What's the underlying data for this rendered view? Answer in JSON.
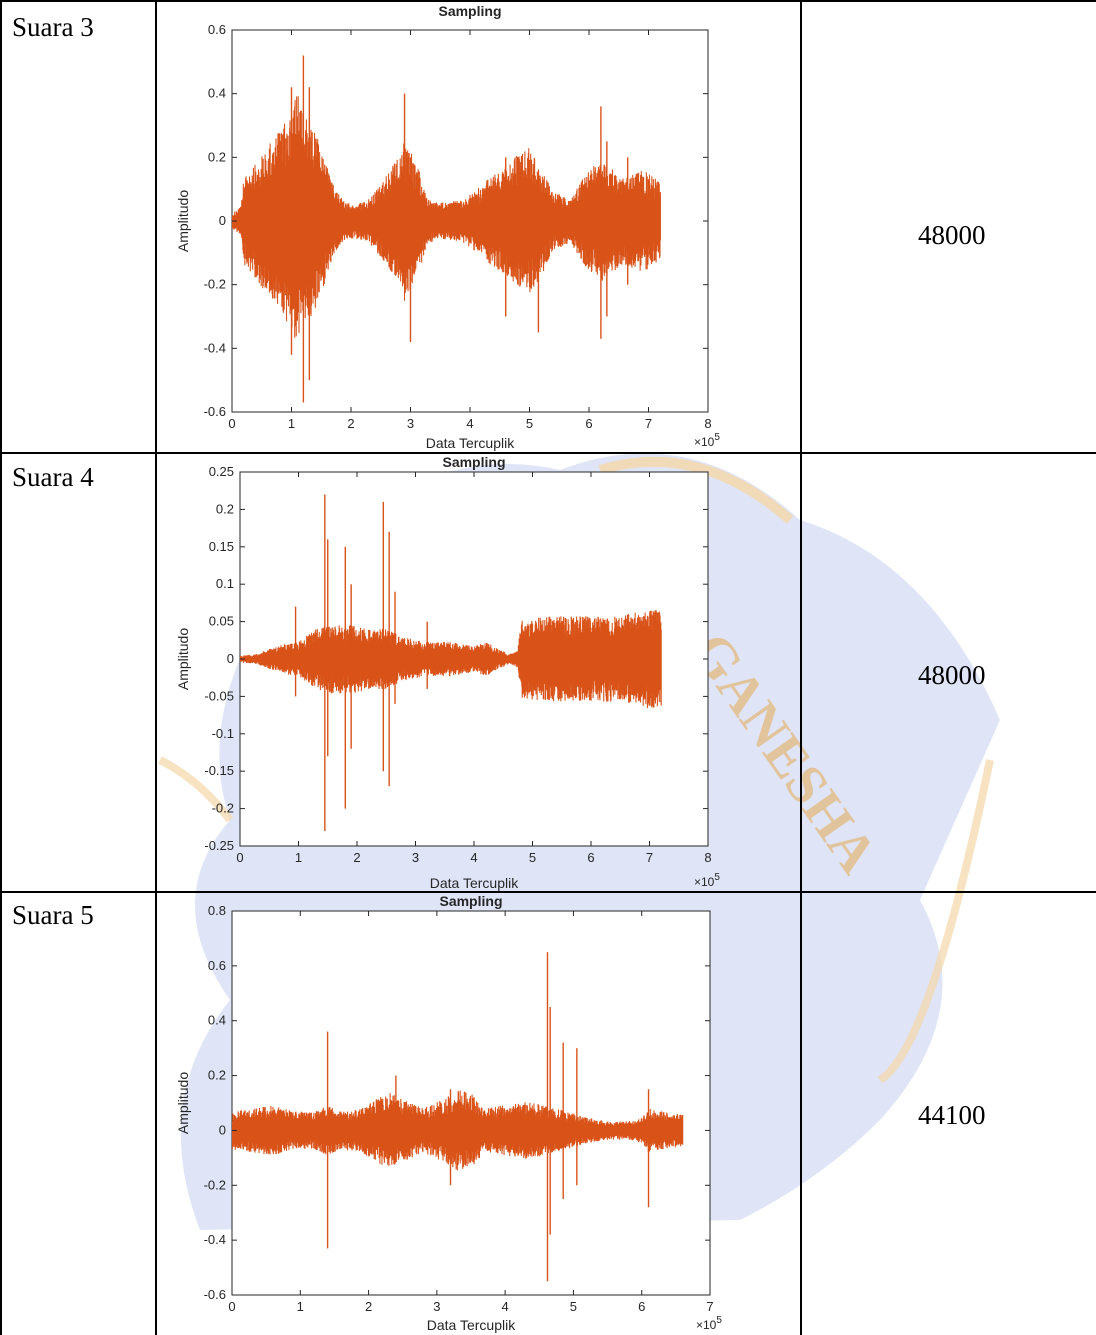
{
  "rows": [
    {
      "label": "Suara 3",
      "rate": "48000",
      "chart": {
        "type": "line",
        "title": "Sampling",
        "xlabel": "Data Tercuplik",
        "ylabel": "Amplitudo",
        "xlim": [
          0,
          8
        ],
        "ylim": [
          -0.6,
          0.6
        ],
        "x_exponent": "×10",
        "x_exponent_power": "5",
        "xticks": [
          0,
          1,
          2,
          3,
          4,
          5,
          6,
          7,
          8
        ],
        "yticks": [
          -0.6,
          -0.4,
          -0.2,
          0,
          0.2,
          0.4,
          0.6
        ],
        "xtick_labels": [
          "0",
          "1",
          "2",
          "3",
          "4",
          "5",
          "6",
          "7",
          "8"
        ],
        "ytick_labels": [
          "-0.6",
          "-0.4",
          "-0.2",
          "0",
          "0.2",
          "0.4",
          "0.6"
        ],
        "signal_end": 7.2,
        "color": "#D95319",
        "envelope": [
          [
            0,
            0.02
          ],
          [
            0.15,
            0.04
          ],
          [
            0.2,
            0.12
          ],
          [
            0.5,
            0.18
          ],
          [
            0.8,
            0.25
          ],
          [
            1.0,
            0.3
          ],
          [
            1.1,
            0.35
          ],
          [
            1.2,
            0.3
          ],
          [
            1.3,
            0.28
          ],
          [
            1.5,
            0.2
          ],
          [
            1.7,
            0.1
          ],
          [
            1.9,
            0.05
          ],
          [
            2.1,
            0.05
          ],
          [
            2.3,
            0.06
          ],
          [
            2.5,
            0.1
          ],
          [
            2.7,
            0.15
          ],
          [
            2.9,
            0.22
          ],
          [
            3.1,
            0.16
          ],
          [
            3.3,
            0.06
          ],
          [
            3.6,
            0.05
          ],
          [
            3.9,
            0.06
          ],
          [
            4.2,
            0.1
          ],
          [
            4.5,
            0.14
          ],
          [
            4.8,
            0.18
          ],
          [
            5.0,
            0.2
          ],
          [
            5.2,
            0.15
          ],
          [
            5.4,
            0.08
          ],
          [
            5.7,
            0.06
          ],
          [
            5.9,
            0.12
          ],
          [
            6.2,
            0.17
          ],
          [
            6.4,
            0.14
          ],
          [
            6.6,
            0.12
          ],
          [
            6.9,
            0.14
          ],
          [
            7.1,
            0.12
          ],
          [
            7.2,
            0.1
          ]
        ],
        "spikes": [
          [
            1.0,
            0.42,
            -0.42
          ],
          [
            1.2,
            0.52,
            -0.57
          ],
          [
            1.3,
            0.42,
            -0.5
          ],
          [
            2.9,
            0.4,
            -0.2
          ],
          [
            3.0,
            0.2,
            -0.38
          ],
          [
            4.6,
            0.2,
            -0.3
          ],
          [
            5.15,
            0.15,
            -0.35
          ],
          [
            6.2,
            0.36,
            -0.37
          ],
          [
            6.3,
            0.25,
            -0.3
          ],
          [
            6.65,
            0.2,
            -0.2
          ]
        ]
      }
    },
    {
      "label": "Suara 4",
      "rate": "48000",
      "chart": {
        "type": "line",
        "title": "Sampling",
        "xlabel": "Data Tercuplik",
        "ylabel": "Amplitudo",
        "xlim": [
          0,
          8
        ],
        "ylim": [
          -0.25,
          0.25
        ],
        "x_exponent": "×10",
        "x_exponent_power": "5",
        "xticks": [
          0,
          1,
          2,
          3,
          4,
          5,
          6,
          7,
          8
        ],
        "yticks": [
          -0.25,
          -0.2,
          -0.15,
          -0.1,
          -0.05,
          0,
          0.05,
          0.1,
          0.15,
          0.2,
          0.25
        ],
        "xtick_labels": [
          "0",
          "1",
          "2",
          "3",
          "4",
          "5",
          "6",
          "7",
          "8"
        ],
        "ytick_labels": [
          "-0.25",
          "-0.2",
          "-0.15",
          "-0.1",
          "-0.05",
          "0",
          "0.05",
          "0.1",
          "0.15",
          "0.2",
          "0.25"
        ],
        "signal_end": 7.2,
        "color": "#D95319",
        "envelope": [
          [
            0,
            0.004
          ],
          [
            0.3,
            0.006
          ],
          [
            0.5,
            0.012
          ],
          [
            0.8,
            0.018
          ],
          [
            1.0,
            0.02
          ],
          [
            1.3,
            0.035
          ],
          [
            1.5,
            0.04
          ],
          [
            1.7,
            0.04
          ],
          [
            2.0,
            0.04
          ],
          [
            2.2,
            0.035
          ],
          [
            2.5,
            0.035
          ],
          [
            2.8,
            0.025
          ],
          [
            3.2,
            0.02
          ],
          [
            3.6,
            0.02
          ],
          [
            4.0,
            0.015
          ],
          [
            4.2,
            0.02
          ],
          [
            4.4,
            0.012
          ],
          [
            4.6,
            0.006
          ],
          [
            4.75,
            0.01
          ],
          [
            4.8,
            0.045
          ],
          [
            5.2,
            0.05
          ],
          [
            5.6,
            0.05
          ],
          [
            6.0,
            0.05
          ],
          [
            6.4,
            0.05
          ],
          [
            6.8,
            0.055
          ],
          [
            7.0,
            0.06
          ],
          [
            7.2,
            0.055
          ]
        ],
        "spikes": [
          [
            0.95,
            0.07,
            -0.05
          ],
          [
            1.45,
            0.22,
            -0.23
          ],
          [
            1.5,
            0.16,
            -0.13
          ],
          [
            1.8,
            0.15,
            -0.2
          ],
          [
            1.9,
            0.1,
            -0.12
          ],
          [
            2.45,
            0.21,
            -0.15
          ],
          [
            2.55,
            0.17,
            -0.17
          ],
          [
            2.65,
            0.09,
            -0.06
          ],
          [
            3.2,
            0.05,
            -0.04
          ]
        ]
      }
    },
    {
      "label": "Suara 5",
      "rate": "44100",
      "chart": {
        "type": "line",
        "title": "Sampling",
        "xlabel": "Data Tercuplik",
        "ylabel": "Amplitudo",
        "xlim": [
          0,
          7
        ],
        "ylim": [
          -0.6,
          0.8
        ],
        "x_exponent": "×10",
        "x_exponent_power": "5",
        "xticks": [
          0,
          1,
          2,
          3,
          4,
          5,
          6,
          7
        ],
        "yticks": [
          -0.6,
          -0.4,
          -0.2,
          0,
          0.2,
          0.4,
          0.6,
          0.8
        ],
        "xtick_labels": [
          "0",
          "1",
          "2",
          "3",
          "4",
          "5",
          "6",
          "7"
        ],
        "ytick_labels": [
          "-0.6",
          "-0.4",
          "-0.2",
          "0",
          "0.2",
          "0.4",
          "0.6",
          "0.8"
        ],
        "signal_end": 6.6,
        "color": "#D95319",
        "envelope": [
          [
            0,
            0.06
          ],
          [
            0.3,
            0.07
          ],
          [
            0.6,
            0.08
          ],
          [
            0.9,
            0.06
          ],
          [
            1.2,
            0.06
          ],
          [
            1.4,
            0.08
          ],
          [
            1.6,
            0.06
          ],
          [
            1.9,
            0.07
          ],
          [
            2.1,
            0.1
          ],
          [
            2.3,
            0.12
          ],
          [
            2.5,
            0.1
          ],
          [
            2.8,
            0.07
          ],
          [
            3.1,
            0.1
          ],
          [
            3.3,
            0.13
          ],
          [
            3.5,
            0.12
          ],
          [
            3.7,
            0.07
          ],
          [
            4.0,
            0.08
          ],
          [
            4.3,
            0.09
          ],
          [
            4.6,
            0.08
          ],
          [
            4.9,
            0.06
          ],
          [
            5.2,
            0.04
          ],
          [
            5.5,
            0.03
          ],
          [
            5.8,
            0.03
          ],
          [
            6.0,
            0.04
          ],
          [
            6.1,
            0.07
          ],
          [
            6.3,
            0.06
          ],
          [
            6.6,
            0.05
          ]
        ],
        "spikes": [
          [
            1.4,
            0.36,
            -0.43
          ],
          [
            2.4,
            0.2,
            -0.1
          ],
          [
            3.2,
            0.15,
            -0.2
          ],
          [
            4.62,
            0.65,
            -0.55
          ],
          [
            4.66,
            0.45,
            -0.38
          ],
          [
            4.85,
            0.32,
            -0.25
          ],
          [
            5.05,
            0.3,
            -0.2
          ],
          [
            6.1,
            0.15,
            -0.28
          ]
        ]
      }
    }
  ]
}
